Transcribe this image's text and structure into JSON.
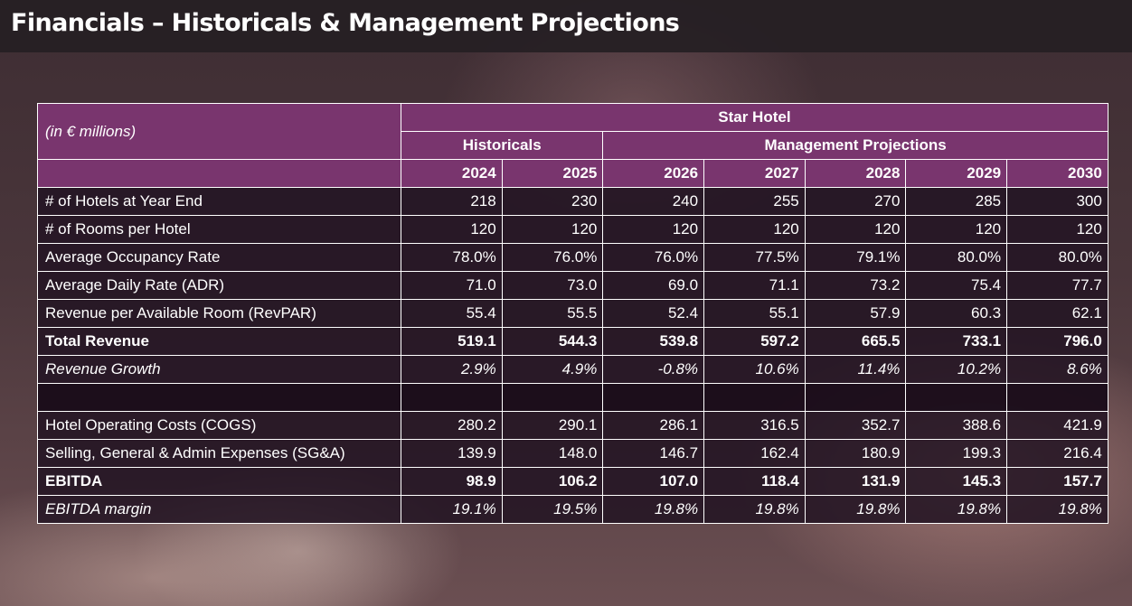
{
  "page": {
    "title": "Financials – Historicals & Management Projections"
  },
  "table": {
    "caption": "(in € millions)",
    "entity": "Star Hotel",
    "group_historicals": "Historicals",
    "group_projections": "Management Projections",
    "years": [
      "2024",
      "2025",
      "2026",
      "2027",
      "2028",
      "2029",
      "2030"
    ],
    "rows": [
      {
        "label": "# of Hotels at Year End",
        "values": [
          "218",
          "230",
          "240",
          "255",
          "270",
          "285",
          "300"
        ],
        "style": "normal"
      },
      {
        "label": "# of Rooms per Hotel",
        "values": [
          "120",
          "120",
          "120",
          "120",
          "120",
          "120",
          "120"
        ],
        "style": "normal"
      },
      {
        "label": "Average Occupancy Rate",
        "values": [
          "78.0%",
          "76.0%",
          "76.0%",
          "77.5%",
          "79.1%",
          "80.0%",
          "80.0%"
        ],
        "style": "normal"
      },
      {
        "label": "Average Daily Rate (ADR)",
        "values": [
          "71.0",
          "73.0",
          "69.0",
          "71.1",
          "73.2",
          "75.4",
          "77.7"
        ],
        "style": "normal"
      },
      {
        "label": "Revenue per Available Room (RevPAR)",
        "values": [
          "55.4",
          "55.5",
          "52.4",
          "55.1",
          "57.9",
          "60.3",
          "62.1"
        ],
        "style": "normal"
      },
      {
        "label": "Total Revenue",
        "values": [
          "519.1",
          "544.3",
          "539.8",
          "597.2",
          "665.5",
          "733.1",
          "796.0"
        ],
        "style": "bold"
      },
      {
        "label": "Revenue Growth",
        "values": [
          "2.9%",
          "4.9%",
          "-0.8%",
          "10.6%",
          "11.4%",
          "10.2%",
          "8.6%"
        ],
        "style": "italic"
      },
      {
        "label": "",
        "values": [
          "",
          "",
          "",
          "",
          "",
          "",
          ""
        ],
        "style": "blank"
      },
      {
        "label": "Hotel Operating Costs (COGS)",
        "values": [
          "280.2",
          "290.1",
          "286.1",
          "316.5",
          "352.7",
          "388.6",
          "421.9"
        ],
        "style": "normal"
      },
      {
        "label": "Selling, General & Admin Expenses (SG&A)",
        "values": [
          "139.9",
          "148.0",
          "146.7",
          "162.4",
          "180.9",
          "199.3",
          "216.4"
        ],
        "style": "normal"
      },
      {
        "label": "EBITDA",
        "values": [
          "98.9",
          "106.2",
          "107.0",
          "118.4",
          "131.9",
          "145.3",
          "157.7"
        ],
        "style": "bold"
      },
      {
        "label": "EBITDA margin",
        "values": [
          "19.1%",
          "19.5%",
          "19.8%",
          "19.8%",
          "19.8%",
          "19.8%",
          "19.8%"
        ],
        "style": "italic"
      }
    ]
  }
}
